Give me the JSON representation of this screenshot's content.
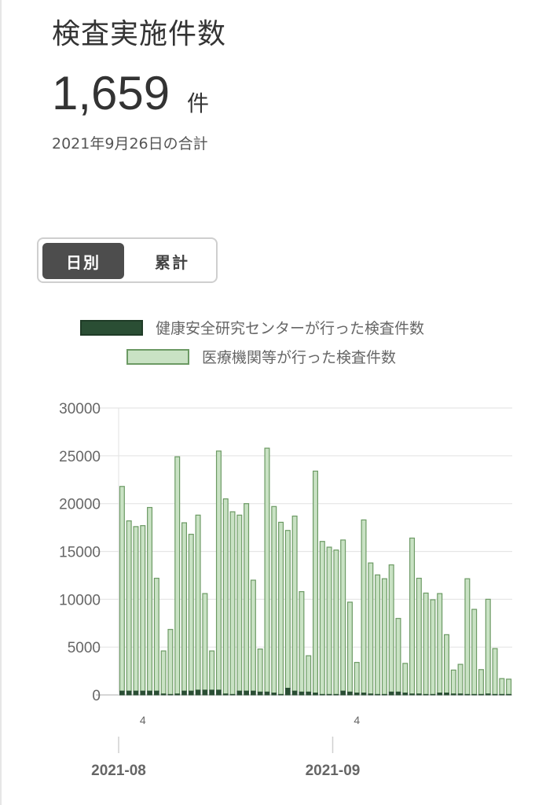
{
  "header": {
    "title": "検査実施件数",
    "total_value": "1,659",
    "total_unit": "件",
    "date_note": "2021年9月26日の合計"
  },
  "toggle": {
    "daily_label": "日別",
    "cumulative_label": "累計",
    "selected": "daily"
  },
  "legend": {
    "series1": "健康安全研究センターが行った検査件数",
    "series2": "医療機関等が行った検査件数"
  },
  "colors": {
    "series1": "#2a4e34",
    "series2_fill": "#c9e2c4",
    "series2_stroke": "#6c9a64"
  },
  "chart_data": {
    "type": "bar",
    "stacked": true,
    "ylim": [
      0,
      30000
    ],
    "y_ticks": [
      "0",
      "5000",
      "10000",
      "15000",
      "20000",
      "25000",
      "30000"
    ],
    "x_minor_labels": [
      "4",
      "4"
    ],
    "x_major_labels": [
      "2021-08",
      "2021-09"
    ],
    "grid": true,
    "legend_position": "top",
    "categories": [
      "2021-08-01",
      "2021-08-02",
      "2021-08-03",
      "2021-08-04",
      "2021-08-05",
      "2021-08-06",
      "2021-08-07",
      "2021-08-08",
      "2021-08-09",
      "2021-08-10",
      "2021-08-11",
      "2021-08-12",
      "2021-08-13",
      "2021-08-14",
      "2021-08-15",
      "2021-08-16",
      "2021-08-17",
      "2021-08-18",
      "2021-08-19",
      "2021-08-20",
      "2021-08-21",
      "2021-08-22",
      "2021-08-23",
      "2021-08-24",
      "2021-08-25",
      "2021-08-26",
      "2021-08-27",
      "2021-08-28",
      "2021-08-29",
      "2021-08-30",
      "2021-08-31",
      "2021-09-01",
      "2021-09-02",
      "2021-09-03",
      "2021-09-04",
      "2021-09-05",
      "2021-09-06",
      "2021-09-07",
      "2021-09-08",
      "2021-09-09",
      "2021-09-10",
      "2021-09-11",
      "2021-09-12",
      "2021-09-13",
      "2021-09-14",
      "2021-09-15",
      "2021-09-16",
      "2021-09-17",
      "2021-09-18",
      "2021-09-19",
      "2021-09-20",
      "2021-09-21",
      "2021-09-22",
      "2021-09-23",
      "2021-09-24",
      "2021-09-25",
      "2021-09-26"
    ],
    "series": [
      {
        "name": "健康安全研究センターが行った検査件数",
        "values": [
          400,
          400,
          400,
          400,
          400,
          400,
          100,
          50,
          100,
          400,
          400,
          500,
          500,
          500,
          500,
          100,
          50,
          400,
          400,
          400,
          300,
          300,
          200,
          50,
          700,
          400,
          300,
          300,
          200,
          50,
          50,
          50,
          400,
          300,
          200,
          200,
          100,
          50,
          50,
          300,
          300,
          200,
          100,
          100,
          50,
          50,
          200,
          200,
          100,
          100,
          50,
          50,
          50,
          100,
          50,
          50,
          50
        ]
      },
      {
        "name": "医療機関等が行った検査件数",
        "values": [
          21400,
          17800,
          17200,
          17300,
          19200,
          11800,
          4500,
          6800,
          24800,
          17600,
          16400,
          18300,
          10100,
          4100,
          25000,
          20400,
          19100,
          18400,
          19600,
          11600,
          4500,
          25500,
          19500,
          18000,
          16500,
          18300,
          10500,
          3800,
          23200,
          16000,
          15400,
          15100,
          15800,
          9400,
          3200,
          18100,
          13700,
          12500,
          12100,
          13300,
          7700,
          3100,
          16300,
          12100,
          10600,
          9900,
          10400,
          6100,
          2500,
          3100,
          12100,
          8900,
          2600,
          9900,
          4800,
          1659,
          1600
        ]
      }
    ]
  }
}
